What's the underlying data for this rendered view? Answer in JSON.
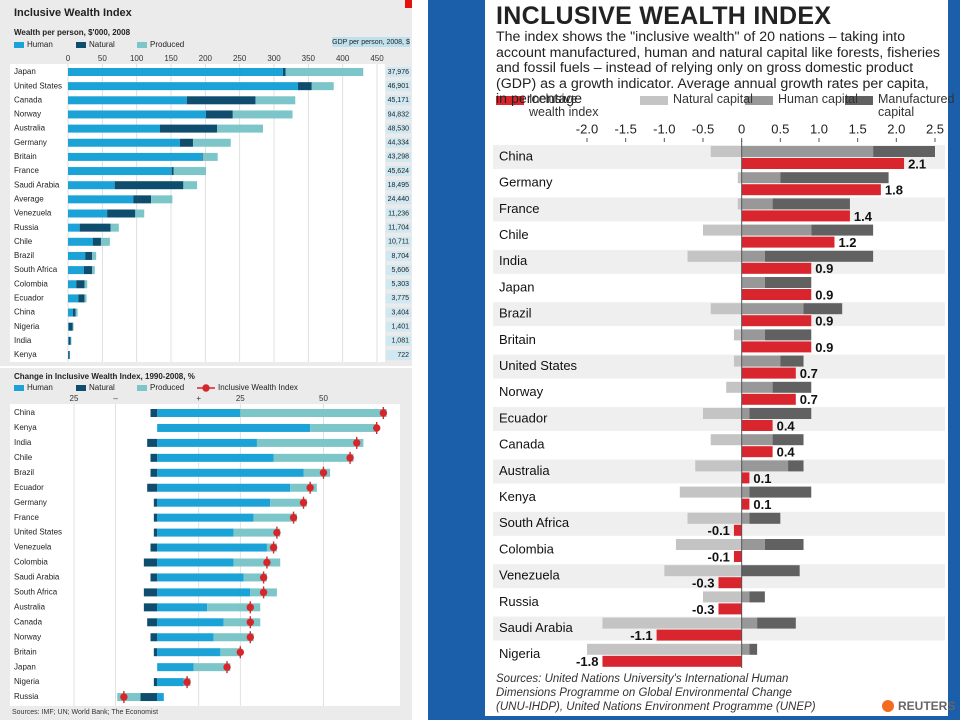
{
  "chart_data": [
    {
      "type": "bar",
      "orientation": "horizontal",
      "title": "Inclusive Wealth Index",
      "subtitle": "Wealth per person, $'000, 2008",
      "categories": [
        "Japan",
        "United States",
        "Canada",
        "Norway",
        "Australia",
        "Germany",
        "Britain",
        "France",
        "Saudi Arabia",
        "Average",
        "Venezuela",
        "Russia",
        "Chile",
        "Brazil",
        "South Africa",
        "Colombia",
        "Ecuador",
        "China",
        "Nigeria",
        "India",
        "Kenya"
      ],
      "series": [
        {
          "name": "Human",
          "color": "#1ba3d8",
          "style": "stacked",
          "values": [
            313,
            335,
            173,
            201,
            134,
            163,
            195,
            151,
            68,
            95,
            57,
            17,
            36,
            25,
            23,
            12,
            15,
            7,
            1,
            1,
            0.5
          ]
        },
        {
          "name": "Natural",
          "color": "#0e4d6e",
          "style": "stacked",
          "values": [
            4,
            20,
            100,
            39,
            83,
            19,
            1,
            3,
            100,
            26,
            41,
            45,
            12,
            10,
            12,
            12,
            9,
            4,
            6,
            3,
            2
          ]
        },
        {
          "name": "Produced",
          "color": "#7cc5c9",
          "style": "stacked",
          "values": [
            113,
            32,
            58,
            87,
            67,
            55,
            22,
            47,
            20,
            31,
            13,
            12,
            13,
            6,
            4,
            4,
            3,
            3,
            1,
            1,
            0.5
          ]
        }
      ],
      "xlim": [
        0,
        450
      ],
      "xticks": [
        0,
        50,
        100,
        150,
        200,
        250,
        300,
        350,
        400,
        450
      ],
      "grid": true,
      "gdp_title": "GDP per person, 2008, $",
      "gdp": [
        "37,976",
        "46,901",
        "45,171",
        "94,832",
        "48,530",
        "44,334",
        "43,298",
        "45,624",
        "18,495",
        "24,440",
        "11,236",
        "11,704",
        "10,711",
        "8,704",
        "5,606",
        "5,303",
        "3,775",
        "3,404",
        "1,401",
        "1,081",
        "722"
      ]
    },
    {
      "type": "bar",
      "orientation": "horizontal",
      "title": "Change in Inclusive Wealth Index, 1990-2008, %",
      "categories": [
        "China",
        "Kenya",
        "India",
        "Chile",
        "Brazil",
        "Ecuador",
        "Germany",
        "France",
        "United States",
        "Venezuela",
        "Colombia",
        "Saudi Arabia",
        "South Africa",
        "Australia",
        "Canada",
        "Norway",
        "Britain",
        "Japan",
        "Nigeria",
        "Russia"
      ],
      "series": [
        {
          "name": "Human",
          "color": "#1ba3d8",
          "style": "stacked",
          "values": [
            25,
            46,
            30,
            35,
            44,
            40,
            34,
            29,
            23,
            33,
            23,
            26,
            28,
            15,
            20,
            17,
            19,
            11,
            8,
            2
          ]
        },
        {
          "name": "Natural",
          "color": "#0e4d6e",
          "style": "stacked",
          "values": [
            -2,
            0,
            -3,
            -2,
            -2,
            -3,
            -1,
            -1,
            -1,
            -2,
            -4,
            -2,
            -4,
            -4,
            -3,
            -2,
            -1,
            0,
            -1,
            -5
          ]
        },
        {
          "name": "Produced",
          "color": "#7cc5c9",
          "style": "stacked",
          "values": [
            44,
            20,
            32,
            24,
            8,
            8,
            11,
            13,
            14,
            3,
            14,
            7,
            8,
            16,
            11,
            12,
            6,
            11,
            2,
            -7
          ]
        },
        {
          "name": "Inclusive Wealth Index",
          "color": "#d7262b",
          "style": "marker",
          "values": [
            68,
            66,
            60,
            58,
            50,
            46,
            44,
            41,
            36,
            35,
            33,
            32,
            32,
            28,
            28,
            28,
            25,
            21,
            9,
            -10
          ]
        }
      ],
      "xlim": [
        -25,
        70
      ],
      "xticks": [
        {
          "value": -25,
          "label": "25"
        },
        {
          "value": -12.5,
          "label": "–"
        },
        {
          "value": 12.5,
          "label": "+"
        },
        25,
        50
      ],
      "grid": true,
      "source": "Sources: IMF; UN; World Bank; The Economist"
    },
    {
      "type": "bar",
      "orientation": "horizontal",
      "title": "INCLUSIVE WEALTH INDEX",
      "subtitle": "The index shows the \"inclusive wealth\" of 20 nations – taking into account manufactured, human and natural capital like forests, fisheries and fossil fuels – instead of relying only on gross domestic product (GDP) as a growth indicator. Average annual growth rates per capita, in percentage",
      "categories": [
        "China",
        "Germany",
        "France",
        "Chile",
        "India",
        "Japan",
        "Brazil",
        "Britain",
        "United States",
        "Norway",
        "Ecuador",
        "Canada",
        "Australia",
        "Kenya",
        "South Africa",
        "Colombia",
        "Venezuela",
        "Russia",
        "Saudi Arabia",
        "Nigeria"
      ],
      "series": [
        {
          "name": "Inclusive wealth index",
          "color": "#d9262e",
          "style": "bar",
          "values": [
            2.1,
            1.8,
            1.4,
            1.2,
            0.9,
            0.9,
            0.9,
            0.9,
            0.7,
            0.7,
            0.4,
            0.4,
            0.1,
            0.1,
            -0.1,
            -0.1,
            -0.3,
            -0.3,
            -1.1,
            -1.8
          ]
        },
        {
          "name": "Natural capital",
          "color": "#c4c4c4",
          "style": "stacked",
          "values": [
            -0.4,
            -0.05,
            -0.05,
            -0.5,
            -0.7,
            0,
            -0.4,
            -0.1,
            -0.1,
            -0.2,
            -0.5,
            -0.4,
            -0.6,
            -0.8,
            -0.7,
            -0.85,
            -1.0,
            -0.5,
            -1.8,
            -2.0
          ]
        },
        {
          "name": "Human capital",
          "color": "#989898",
          "style": "stacked",
          "values": [
            1.7,
            0.5,
            0.4,
            0.9,
            0.3,
            0.3,
            0.8,
            0.3,
            0.5,
            0.4,
            0.1,
            0.4,
            0.6,
            0.1,
            0.1,
            0.3,
            0,
            0.1,
            0.2,
            0.1
          ]
        },
        {
          "name": "Manufactured capital",
          "color": "#616161",
          "style": "stacked",
          "values": [
            0.8,
            1.4,
            1.0,
            0.8,
            1.4,
            0.6,
            0.5,
            0.6,
            0.3,
            0.5,
            0.8,
            0.4,
            0.2,
            0.8,
            0.4,
            0.5,
            0.75,
            0.2,
            0.5,
            0.1
          ]
        }
      ],
      "xlim": [
        -2,
        2.5
      ],
      "xticks": [
        {
          "value": -2,
          "label": "-2.0"
        },
        -1.5,
        {
          "value": -1,
          "label": "-1.0"
        },
        -0.5,
        0,
        0.5,
        {
          "value": 1,
          "label": "1.0"
        },
        1.5,
        {
          "value": 2,
          "label": "2.0"
        },
        2.5
      ],
      "grid": false,
      "source": "Sources: United Nations University's International Human Dimensions Programme on Global Environmental Change (UNU-IHDP), United Nations Environment Programme (UNEP)",
      "credit": "REUTERS"
    }
  ]
}
